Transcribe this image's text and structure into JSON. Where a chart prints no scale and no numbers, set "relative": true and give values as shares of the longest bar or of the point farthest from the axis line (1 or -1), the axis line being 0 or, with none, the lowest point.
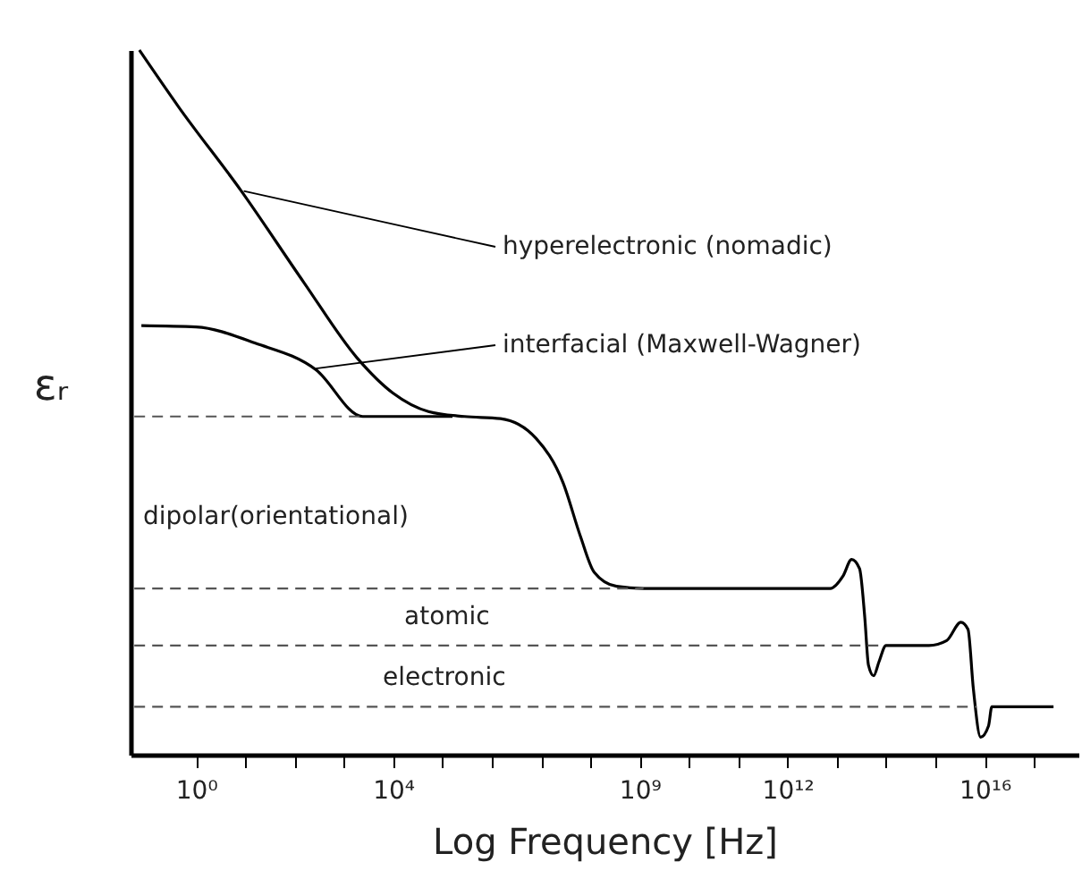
{
  "chart_data": {
    "type": "line",
    "relative": true,
    "xlabel": "Log Frequency [Hz]",
    "ylabel": "εᵣ",
    "log": "x",
    "grid": false,
    "xlim": [
      0.047,
      8e+17
    ],
    "xticks": [
      {
        "value": 1,
        "label": "10⁰"
      },
      {
        "value": 10,
        "label": null
      },
      {
        "value": 100,
        "label": null
      },
      {
        "value": 1000,
        "label": null
      },
      {
        "value": 10000.0,
        "label": "10⁴"
      },
      {
        "value": 100000.0,
        "label": null
      },
      {
        "value": 1000000.0,
        "label": null
      },
      {
        "value": 10000000.0,
        "label": null
      },
      {
        "value": 100000000.0,
        "label": null
      },
      {
        "value": 1000000000.0,
        "label": "10⁹"
      },
      {
        "value": 10000000000.0,
        "label": null
      },
      {
        "value": 100000000000.0,
        "label": null
      },
      {
        "value": 1000000000000.0,
        "label": "10¹²"
      },
      {
        "value": 10000000000000.0,
        "label": null
      },
      {
        "value": 100000000000000.0,
        "label": null
      },
      {
        "value": 1000000000000000.0,
        "label": null
      },
      {
        "value": 1e+16,
        "label": "10¹⁶"
      },
      {
        "value": 1e+17,
        "label": null
      }
    ],
    "series": [
      {
        "color": "#000000",
        "line_style": "solid",
        "x": [
          0.0708,
          0.447,
          8.3,
          155,
          1860,
          10000.0,
          52000.0,
          280000.0,
          1500000.0,
          7900000.0,
          28000000.0,
          63000000.0,
          120000000.0,
          340000000.0,
          1200000000.0,
          33000000000.0,
          7400000000000.0,
          13500000000000.0,
          20000000000000.0,
          29000000000000.0,
          37000000000000.0,
          44000000000000.0,
          56000000000000.0,
          72000000000000.0,
          100000000000000.0,
          740000000000000.0,
          1700000000000000.0,
          3300000000000000.0,
          4600000000000000.0,
          5900000000000000.0,
          8300000000000000.0,
          1.2e+16,
          1.4e+16,
          2.5e+17
        ],
        "values": [
          1,
          0.919,
          0.8,
          0.67,
          0.563,
          0.513,
          0.487,
          0.48,
          0.477,
          0.449,
          0.386,
          0.31,
          0.259,
          0.239,
          0.236,
          0.236,
          0.236,
          0.254,
          0.277,
          0.264,
          0.195,
          0.127,
          0.112,
          0.132,
          0.155,
          0.155,
          0.162,
          0.188,
          0.178,
          0.094,
          0.025,
          0.041,
          0.068,
          0.068
        ]
      },
      {
        "color": "#000000",
        "line_style": "solid",
        "x": [
          0.078,
          1.0,
          16,
          275,
          2400,
          160000.0
        ],
        "values": [
          0.609,
          0.607,
          0.584,
          0.546,
          0.48,
          0.48
        ]
      },
      {
        "color": "#555555",
        "line_style": "dashed",
        "x": [
          0.056,
          2400
        ],
        "values": [
          0.48,
          0.48
        ]
      },
      {
        "color": "#555555",
        "line_style": "dashed",
        "x": [
          0.056,
          1200000000.0
        ],
        "values": [
          0.236,
          0.236
        ]
      },
      {
        "color": "#555555",
        "line_style": "dashed",
        "x": [
          0.056,
          78000000000000.0
        ],
        "values": [
          0.155,
          0.155
        ]
      },
      {
        "color": "#555555",
        "line_style": "dashed",
        "x": [
          0.056,
          6900000000000000.0
        ],
        "values": [
          0.068,
          0.068
        ]
      }
    ],
    "annotations": [
      {
        "text": "hyperelectronic (nomadic)",
        "x": 9.3,
        "y": 0.8
      },
      {
        "text": "interfacial (Maxwell-Wagner)",
        "x": 270,
        "y": 0.548
      },
      "dipolar(orientational)",
      "atomic",
      "electronic"
    ]
  }
}
